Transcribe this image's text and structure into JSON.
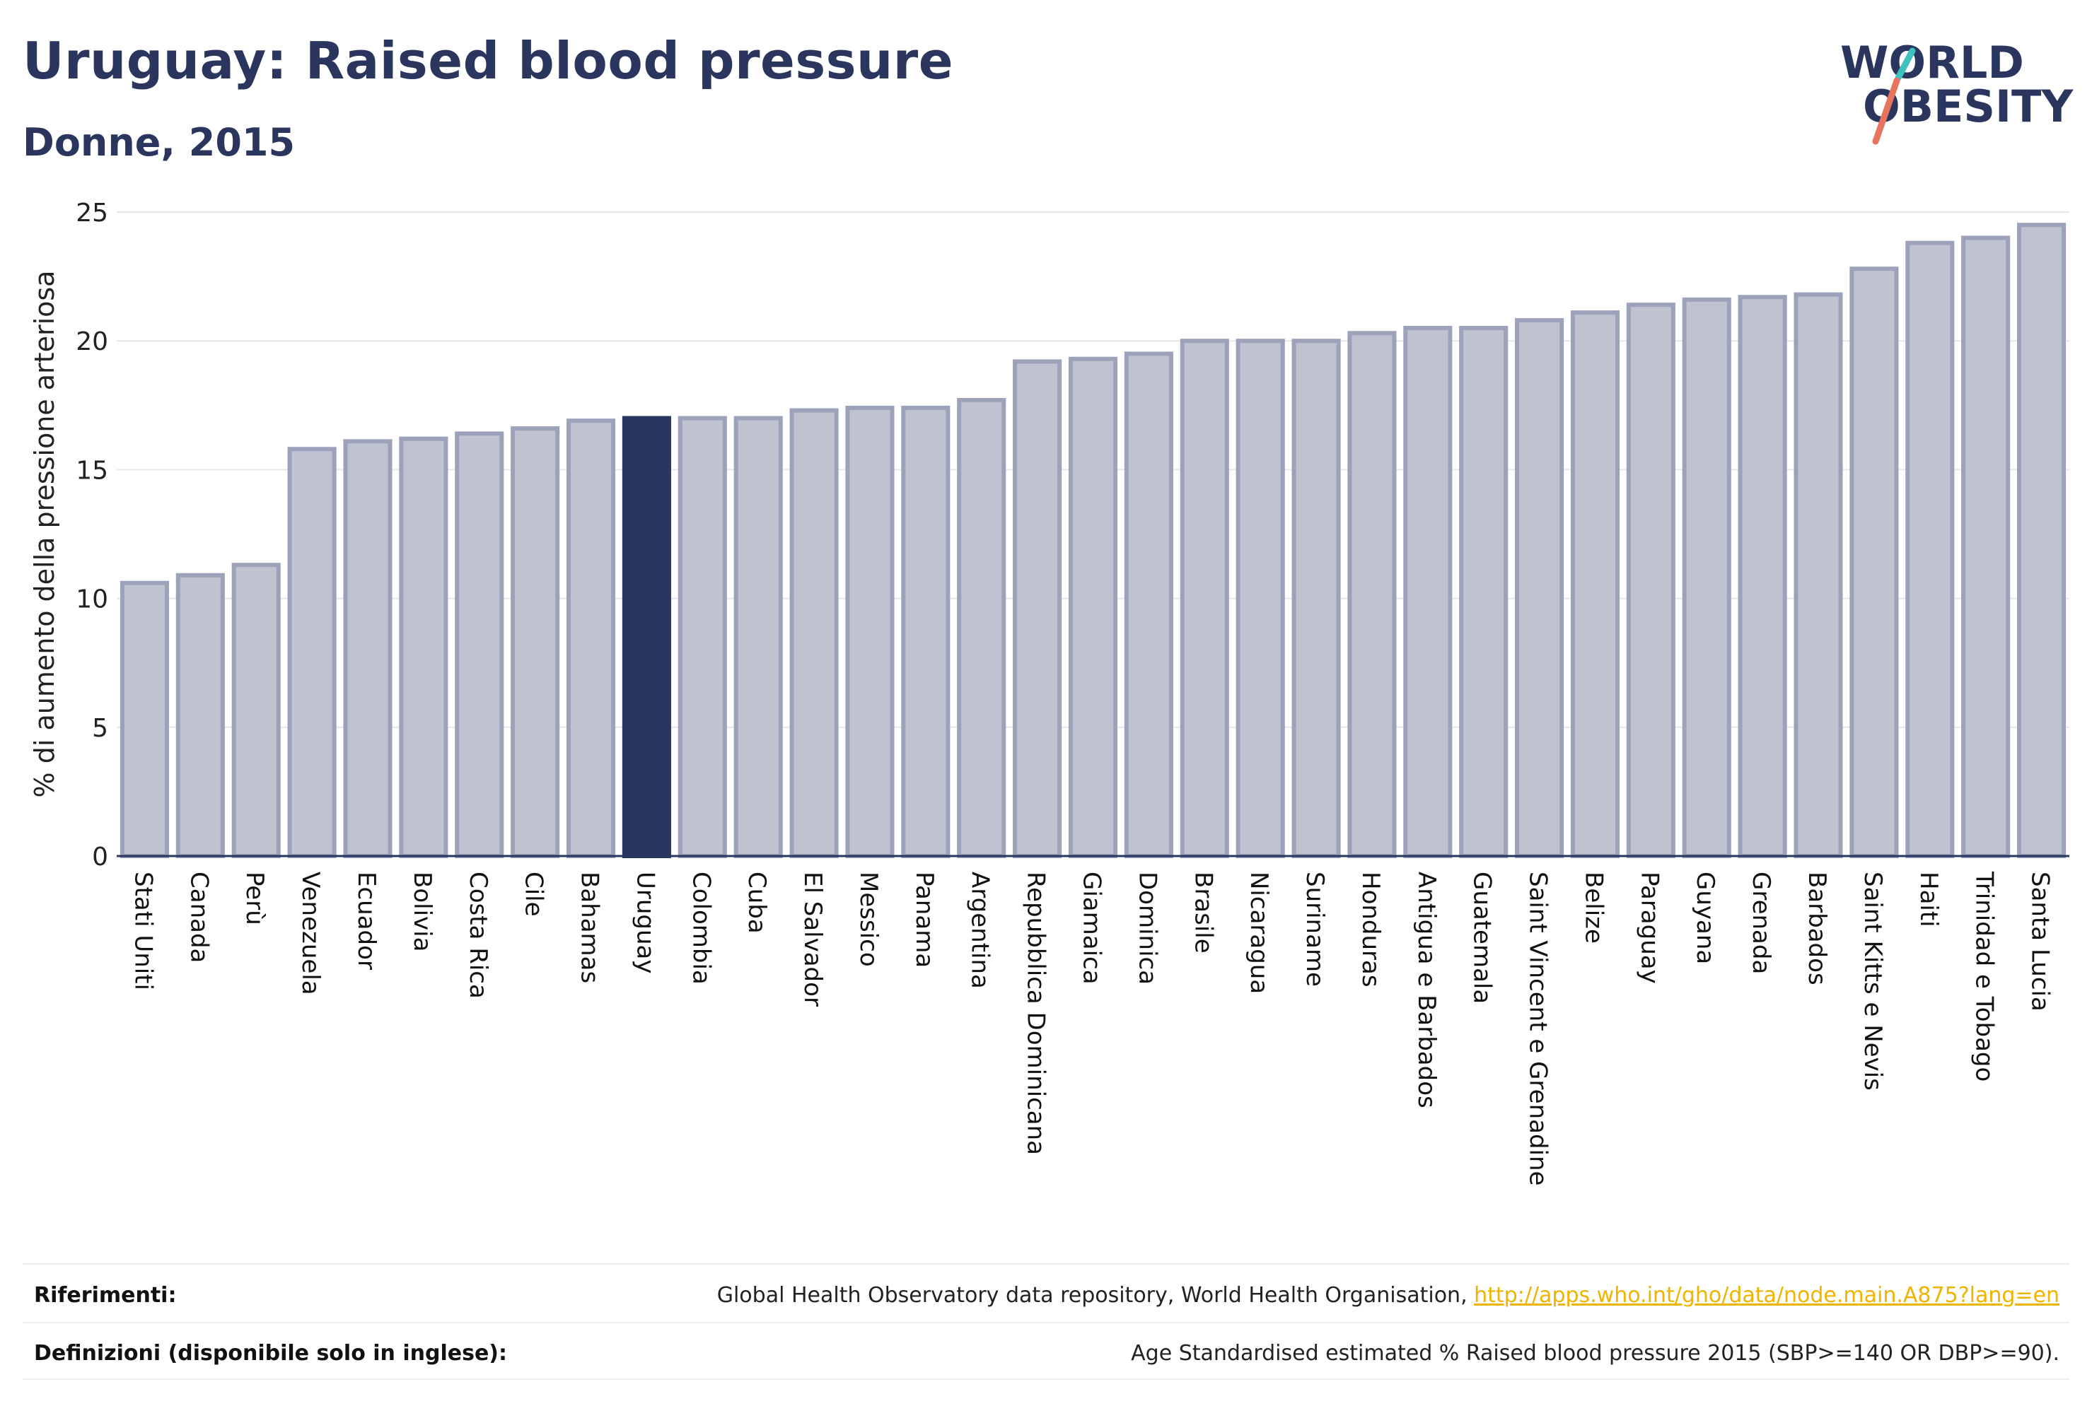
{
  "header": {
    "title": "Uruguay: Raised blood pressure",
    "subtitle": "Donne, 2015"
  },
  "logo": {
    "line1": "WORLD",
    "line2": "OBESITY",
    "text_color": "#2b365f",
    "slash_colors": [
      "#3fc1c0",
      "#e8735f"
    ]
  },
  "chart_data": {
    "type": "bar",
    "ylabel": "% di aumento della pressione arteriosa",
    "xlabel": "",
    "ylim": [
      0,
      25
    ],
    "yticks": [
      0,
      5,
      10,
      15,
      20,
      25
    ],
    "grid": true,
    "highlight": "Uruguay",
    "colors": {
      "bar": "#bfc2cf",
      "bar_edge": "#9da2bb",
      "highlight": "#2b365f",
      "axis": "#2b365f",
      "grid": "#e6e6ec"
    },
    "categories": [
      "Stati Uniti",
      "Canada",
      "Perù",
      "Venezuela",
      "Ecuador",
      "Bolivia",
      "Costa Rica",
      "Cile",
      "Bahamas",
      "Uruguay",
      "Colombia",
      "Cuba",
      "El Salvador",
      "Messico",
      "Panama",
      "Argentina",
      "Repubblica Dominicana",
      "Giamaica",
      "Dominica",
      "Brasile",
      "Nicaragua",
      "Suriname",
      "Honduras",
      "Antigua e Barbados",
      "Guatemala",
      "Saint Vincent e Grenadine",
      "Belize",
      "Paraguay",
      "Guyana",
      "Grenada",
      "Barbados",
      "Saint Kitts e Nevis",
      "Haiti",
      "Trinidad e Tobago",
      "Santa Lucia"
    ],
    "values": [
      10.6,
      10.9,
      11.3,
      15.8,
      16.1,
      16.2,
      16.4,
      16.6,
      16.9,
      17.0,
      17.0,
      17.0,
      17.3,
      17.4,
      17.4,
      17.7,
      19.2,
      19.3,
      19.5,
      20.0,
      20.0,
      20.0,
      20.3,
      20.5,
      20.5,
      20.8,
      21.1,
      21.4,
      21.6,
      21.7,
      21.8,
      22.8,
      23.8,
      24.0,
      24.5
    ]
  },
  "footer": {
    "references_label": "Riferimenti:",
    "references_text": "Global Health Observatory data repository, World Health Organisation, ",
    "references_link": "http://apps.who.int/gho/data/node.main.A875?lang=en",
    "definitions_label": "Definizioni (disponibile solo in inglese):",
    "definitions_text": "Age Standardised estimated % Raised blood pressure 2015 (SBP>=140 OR DBP>=90)."
  }
}
